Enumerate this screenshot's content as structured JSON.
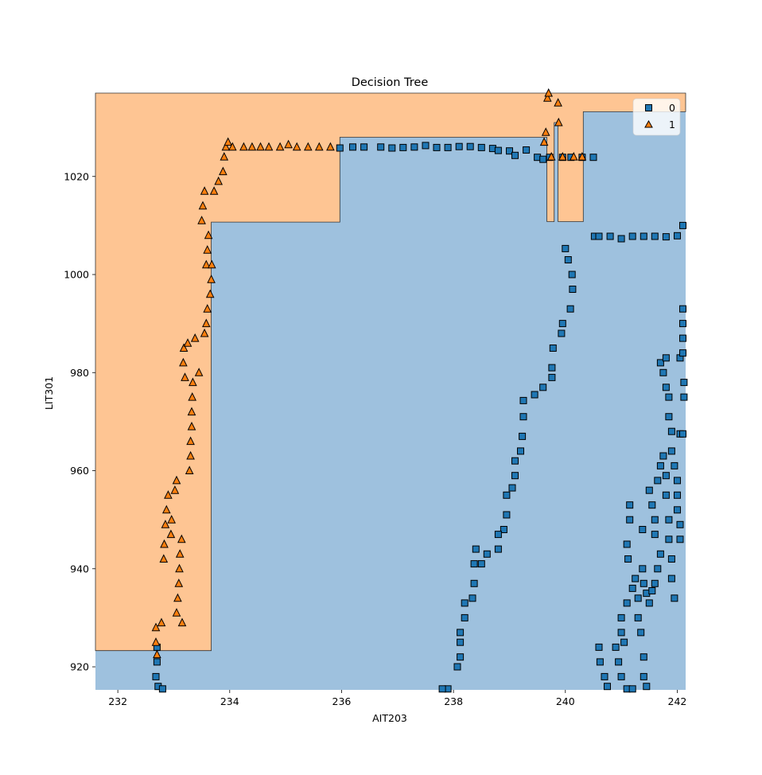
{
  "chart_data": {
    "type": "scatter",
    "title": "Decision Tree",
    "xlabel": "AIT203",
    "ylabel": "LIT301",
    "xlim": [
      231.6,
      242.15
    ],
    "ylim": [
      915.3,
      1037.0
    ],
    "xticks": [
      232,
      234,
      236,
      238,
      240,
      242
    ],
    "yticks": [
      920,
      940,
      960,
      980,
      1000,
      1020
    ],
    "legend_position": "top-right",
    "region_colors": {
      "0": "#9ec1de",
      "1": "#fec593"
    },
    "class_1_region": {
      "description_points": [
        [
          231.6,
          923.3
        ],
        [
          233.67,
          923.3
        ],
        [
          233.67,
          1010.7
        ],
        [
          235.97,
          1010.7
        ],
        [
          235.97,
          1028.0
        ],
        [
          239.67,
          1028.0
        ],
        [
          239.67,
          1010.8
        ],
        [
          239.8,
          1010.8
        ],
        [
          239.8,
          1031.0
        ],
        [
          239.87,
          1031.0
        ],
        [
          239.87,
          1010.8
        ],
        [
          240.32,
          1010.8
        ],
        [
          240.32,
          1033.2
        ],
        [
          242.15,
          1033.2
        ],
        [
          242.15,
          1037.0
        ],
        [
          231.6,
          1037.0
        ]
      ]
    },
    "series": [
      {
        "name": "0",
        "marker": "square",
        "color": "#1f77b4",
        "points": [
          [
            232.68,
            918
          ],
          [
            232.7,
            921
          ],
          [
            232.7,
            924
          ],
          [
            232.72,
            916
          ],
          [
            232.8,
            915.5
          ],
          [
            235.97,
            1025.8
          ],
          [
            236.2,
            1026
          ],
          [
            236.4,
            1026
          ],
          [
            236.7,
            1026
          ],
          [
            236.9,
            1025.8
          ],
          [
            237.1,
            1025.9
          ],
          [
            237.3,
            1026
          ],
          [
            237.5,
            1026.3
          ],
          [
            237.7,
            1025.9
          ],
          [
            237.9,
            1025.9
          ],
          [
            238.1,
            1026.1
          ],
          [
            238.3,
            1026.1
          ],
          [
            238.5,
            1025.9
          ],
          [
            238.7,
            1025.7
          ],
          [
            238.8,
            1025.3
          ],
          [
            239.0,
            1025.2
          ],
          [
            239.1,
            1024.3
          ],
          [
            239.3,
            1025.4
          ],
          [
            239.5,
            1023.9
          ],
          [
            239.6,
            1023.5
          ],
          [
            239.72,
            1023.9
          ],
          [
            239.95,
            1023.9
          ],
          [
            240.1,
            1023.9
          ],
          [
            240.3,
            1023.9
          ],
          [
            240.5,
            1023.9
          ],
          [
            240.52,
            1007.8
          ],
          [
            240.6,
            1007.8
          ],
          [
            240.8,
            1007.8
          ],
          [
            241.0,
            1007.3
          ],
          [
            241.2,
            1007.8
          ],
          [
            241.4,
            1007.8
          ],
          [
            241.6,
            1007.8
          ],
          [
            241.8,
            1007.7
          ],
          [
            242.0,
            1007.9
          ],
          [
            242.1,
            1010
          ],
          [
            240.0,
            1005.3
          ],
          [
            240.05,
            1003
          ],
          [
            240.12,
            1000
          ],
          [
            240.13,
            997
          ],
          [
            240.09,
            993
          ],
          [
            239.95,
            990
          ],
          [
            239.93,
            988
          ],
          [
            239.78,
            985
          ],
          [
            239.76,
            981
          ],
          [
            239.76,
            979
          ],
          [
            239.6,
            977
          ],
          [
            239.45,
            975.5
          ],
          [
            239.25,
            974.3
          ],
          [
            239.25,
            971
          ],
          [
            239.23,
            967
          ],
          [
            239.2,
            964
          ],
          [
            239.1,
            962
          ],
          [
            239.1,
            959
          ],
          [
            239.05,
            956.5
          ],
          [
            238.95,
            955
          ],
          [
            238.95,
            951
          ],
          [
            238.9,
            948
          ],
          [
            238.8,
            947
          ],
          [
            238.8,
            944
          ],
          [
            238.6,
            943
          ],
          [
            238.5,
            941
          ],
          [
            238.4,
            944
          ],
          [
            238.37,
            941
          ],
          [
            238.37,
            937
          ],
          [
            238.34,
            934
          ],
          [
            238.2,
            933
          ],
          [
            238.2,
            930
          ],
          [
            238.12,
            927
          ],
          [
            238.12,
            925
          ],
          [
            238.12,
            922
          ],
          [
            238.07,
            920
          ],
          [
            237.9,
            915.5
          ],
          [
            237.8,
            915.5
          ],
          [
            240.6,
            924
          ],
          [
            240.62,
            921
          ],
          [
            240.7,
            918
          ],
          [
            240.75,
            916
          ],
          [
            240.9,
            924
          ],
          [
            240.95,
            921
          ],
          [
            241.0,
            918
          ],
          [
            241.1,
            915.5
          ],
          [
            241.2,
            915.5
          ],
          [
            241.0,
            930
          ],
          [
            241.0,
            927
          ],
          [
            241.05,
            925
          ],
          [
            241.1,
            933
          ],
          [
            241.2,
            936
          ],
          [
            241.25,
            938
          ],
          [
            241.3,
            934
          ],
          [
            241.3,
            930
          ],
          [
            241.35,
            927
          ],
          [
            241.4,
            922
          ],
          [
            241.4,
            918
          ],
          [
            241.45,
            916
          ],
          [
            241.1,
            945
          ],
          [
            241.12,
            942
          ],
          [
            241.15,
            953
          ],
          [
            241.15,
            950
          ],
          [
            241.38,
            948
          ],
          [
            241.38,
            940
          ],
          [
            241.4,
            937
          ],
          [
            241.45,
            935
          ],
          [
            241.5,
            933
          ],
          [
            241.55,
            935.5
          ],
          [
            241.6,
            937
          ],
          [
            241.65,
            940
          ],
          [
            241.7,
            943
          ],
          [
            241.5,
            956
          ],
          [
            241.55,
            953
          ],
          [
            241.6,
            950
          ],
          [
            241.6,
            947
          ],
          [
            241.65,
            958
          ],
          [
            241.7,
            961
          ],
          [
            241.75,
            963
          ],
          [
            241.8,
            959
          ],
          [
            241.8,
            955
          ],
          [
            241.85,
            950
          ],
          [
            241.85,
            946
          ],
          [
            241.9,
            942
          ],
          [
            241.9,
            938
          ],
          [
            241.95,
            934
          ],
          [
            241.7,
            982
          ],
          [
            241.75,
            980
          ],
          [
            241.8,
            977
          ],
          [
            241.85,
            975
          ],
          [
            241.85,
            971
          ],
          [
            241.9,
            968
          ],
          [
            241.9,
            964
          ],
          [
            241.95,
            961
          ],
          [
            242.0,
            958
          ],
          [
            242.0,
            955
          ],
          [
            242.0,
            952
          ],
          [
            242.05,
            949
          ],
          [
            242.05,
            946
          ],
          [
            241.8,
            983
          ],
          [
            242.05,
            967.5
          ],
          [
            242.1,
            967.5
          ],
          [
            242.05,
            983
          ],
          [
            242.1,
            993
          ],
          [
            242.1,
            990
          ],
          [
            242.1,
            987
          ],
          [
            242.1,
            984
          ],
          [
            242.12,
            978
          ],
          [
            242.12,
            975
          ]
        ]
      },
      {
        "name": "1",
        "marker": "triangle",
        "color": "#ff7f0e",
        "points": [
          [
            232.68,
            928
          ],
          [
            232.68,
            925
          ],
          [
            232.7,
            922.5
          ],
          [
            232.78,
            929
          ],
          [
            232.82,
            942
          ],
          [
            232.83,
            945
          ],
          [
            232.85,
            949
          ],
          [
            232.87,
            952
          ],
          [
            232.9,
            955
          ],
          [
            232.95,
            947
          ],
          [
            232.96,
            950
          ],
          [
            233.02,
            956
          ],
          [
            233.05,
            958
          ],
          [
            233.05,
            931
          ],
          [
            233.07,
            934
          ],
          [
            233.09,
            937
          ],
          [
            233.1,
            940
          ],
          [
            233.11,
            943
          ],
          [
            233.14,
            946
          ],
          [
            233.15,
            929
          ],
          [
            233.17,
            982
          ],
          [
            233.18,
            985
          ],
          [
            233.2,
            979
          ],
          [
            233.25,
            986
          ],
          [
            233.28,
            960
          ],
          [
            233.3,
            963
          ],
          [
            233.3,
            966
          ],
          [
            233.32,
            969
          ],
          [
            233.32,
            972
          ],
          [
            233.33,
            975
          ],
          [
            233.34,
            978
          ],
          [
            233.38,
            987
          ],
          [
            233.45,
            980
          ],
          [
            233.55,
            988
          ],
          [
            233.58,
            990
          ],
          [
            233.6,
            993
          ],
          [
            233.5,
            1011
          ],
          [
            233.52,
            1014
          ],
          [
            233.55,
            1017
          ],
          [
            233.58,
            1002
          ],
          [
            233.6,
            1005
          ],
          [
            233.62,
            1008
          ],
          [
            233.65,
            996
          ],
          [
            233.67,
            999
          ],
          [
            233.68,
            1002
          ],
          [
            233.72,
            1017
          ],
          [
            233.8,
            1019
          ],
          [
            233.88,
            1021
          ],
          [
            233.9,
            1024
          ],
          [
            233.93,
            1026
          ],
          [
            233.97,
            1027
          ],
          [
            234.05,
            1026
          ],
          [
            234.25,
            1026
          ],
          [
            234.4,
            1026
          ],
          [
            234.55,
            1026
          ],
          [
            234.7,
            1026
          ],
          [
            234.9,
            1026
          ],
          [
            235.05,
            1026.5
          ],
          [
            235.2,
            1026
          ],
          [
            235.4,
            1026
          ],
          [
            235.6,
            1026
          ],
          [
            235.8,
            1026
          ],
          [
            239.62,
            1027
          ],
          [
            239.65,
            1029
          ],
          [
            239.68,
            1036
          ],
          [
            239.7,
            1037
          ],
          [
            239.88,
            1031
          ],
          [
            239.87,
            1035
          ],
          [
            239.75,
            1024
          ],
          [
            239.95,
            1024
          ],
          [
            240.15,
            1024
          ],
          [
            240.3,
            1024
          ]
        ]
      }
    ]
  },
  "legend": {
    "entries": [
      {
        "label": "0",
        "marker": "square",
        "color": "#1f77b4"
      },
      {
        "label": "1",
        "marker": "triangle",
        "color": "#ff7f0e"
      }
    ]
  }
}
